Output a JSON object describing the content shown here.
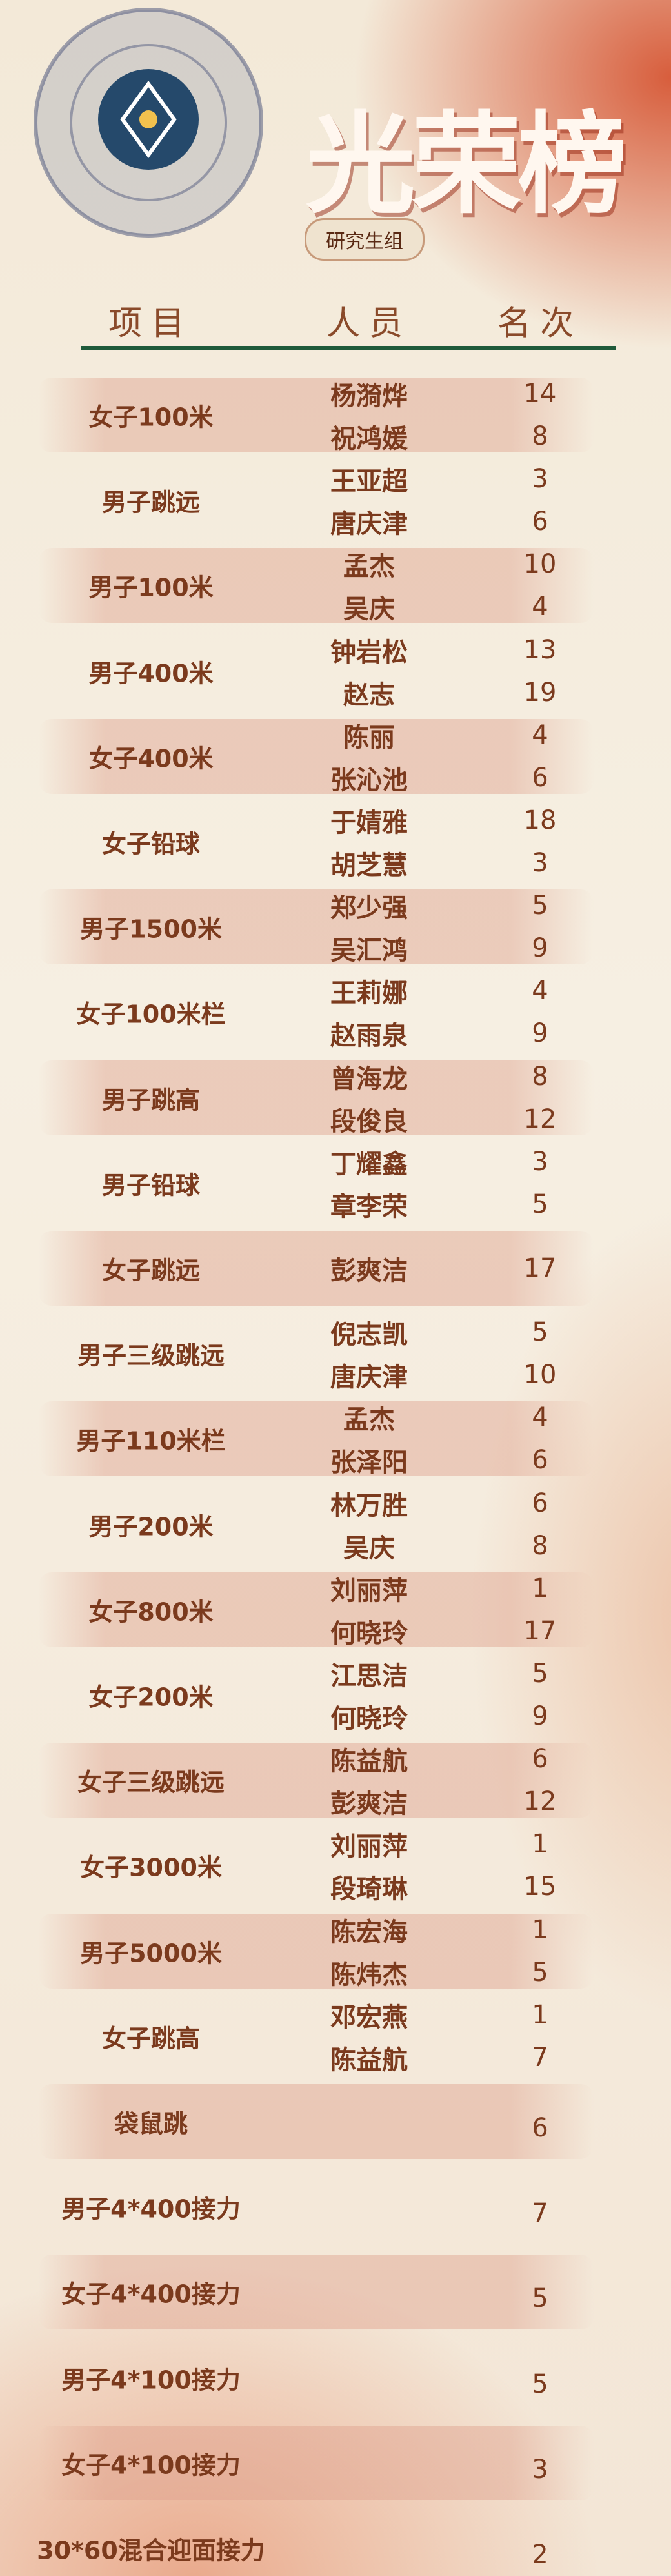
{
  "header": {
    "title": "光荣榜",
    "group": "研究生组",
    "columns": [
      "项目",
      "人员",
      "名次"
    ]
  },
  "events": [
    {
      "name": "女子100米",
      "entries": [
        {
          "person": "杨漪烨",
          "rank": 14
        },
        {
          "person": "祝鸿媛",
          "rank": 8
        }
      ]
    },
    {
      "name": "男子跳远",
      "entries": [
        {
          "person": "王亚超",
          "rank": 3
        },
        {
          "person": "唐庆津",
          "rank": 6
        }
      ]
    },
    {
      "name": "男子100米",
      "entries": [
        {
          "person": "孟杰",
          "rank": 10
        },
        {
          "person": "吴庆",
          "rank": 4
        }
      ]
    },
    {
      "name": "男子400米",
      "entries": [
        {
          "person": "钟岩松",
          "rank": 13
        },
        {
          "person": "赵志",
          "rank": 19
        }
      ]
    },
    {
      "name": "女子400米",
      "entries": [
        {
          "person": "陈丽",
          "rank": 4
        },
        {
          "person": "张沁池",
          "rank": 6
        }
      ]
    },
    {
      "name": "女子铅球",
      "entries": [
        {
          "person": "于婧雅",
          "rank": 18
        },
        {
          "person": "胡芝慧",
          "rank": 3
        }
      ]
    },
    {
      "name": "男子1500米",
      "entries": [
        {
          "person": "郑少强",
          "rank": 5
        },
        {
          "person": "吴汇鸿",
          "rank": 9
        }
      ]
    },
    {
      "name": "女子100米栏",
      "entries": [
        {
          "person": "王莉娜",
          "rank": 4
        },
        {
          "person": "赵雨泉",
          "rank": 9
        }
      ]
    },
    {
      "name": "男子跳高",
      "entries": [
        {
          "person": "曾海龙",
          "rank": 8
        },
        {
          "person": "段俊良",
          "rank": 12
        }
      ]
    },
    {
      "name": "男子铅球",
      "entries": [
        {
          "person": "丁耀鑫",
          "rank": 3
        },
        {
          "person": "章李荣",
          "rank": 5
        }
      ]
    },
    {
      "name": "女子跳远",
      "entries": [
        {
          "person": "彭爽洁",
          "rank": 17
        }
      ]
    },
    {
      "name": "男子三级跳远",
      "entries": [
        {
          "person": "倪志凯",
          "rank": 5
        },
        {
          "person": "唐庆津",
          "rank": 10
        }
      ]
    },
    {
      "name": "男子110米栏",
      "entries": [
        {
          "person": "孟杰",
          "rank": 4
        },
        {
          "person": "张泽阳",
          "rank": 6
        }
      ]
    },
    {
      "name": "男子200米",
      "entries": [
        {
          "person": "林万胜",
          "rank": 6
        },
        {
          "person": "吴庆",
          "rank": 8
        }
      ]
    },
    {
      "name": "女子800米",
      "entries": [
        {
          "person": "刘丽萍",
          "rank": 1
        },
        {
          "person": "何晓玲",
          "rank": 17
        }
      ]
    },
    {
      "name": "女子200米",
      "entries": [
        {
          "person": "江思洁",
          "rank": 5
        },
        {
          "person": "何晓玲",
          "rank": 9
        }
      ]
    },
    {
      "name": "女子三级跳远",
      "entries": [
        {
          "person": "陈益航",
          "rank": 6
        },
        {
          "person": "彭爽洁",
          "rank": 12
        }
      ]
    },
    {
      "name": "女子3000米",
      "entries": [
        {
          "person": "刘丽萍",
          "rank": 1
        },
        {
          "person": "段琦琳",
          "rank": 15
        }
      ]
    },
    {
      "name": "男子5000米",
      "entries": [
        {
          "person": "陈宏海",
          "rank": 1
        },
        {
          "person": "陈炜杰",
          "rank": 5
        }
      ]
    },
    {
      "name": "女子跳高",
      "entries": [
        {
          "person": "邓宏燕",
          "rank": 1
        },
        {
          "person": "陈益航",
          "rank": 7
        }
      ]
    },
    {
      "name": "袋鼠跳",
      "entries": [
        {
          "rank": 6
        }
      ]
    },
    {
      "name": "男子4*400接力",
      "entries": [
        {
          "rank": 7
        }
      ]
    },
    {
      "name": "女子4*400接力",
      "entries": [
        {
          "rank": 5
        }
      ]
    },
    {
      "name": "男子4*100接力",
      "entries": [
        {
          "rank": 5
        }
      ]
    },
    {
      "name": "女子4*100接力",
      "entries": [
        {
          "rank": 3
        }
      ]
    },
    {
      "name": "30*60混合迎面接力",
      "entries": [
        {
          "rank": 2
        }
      ]
    }
  ]
}
